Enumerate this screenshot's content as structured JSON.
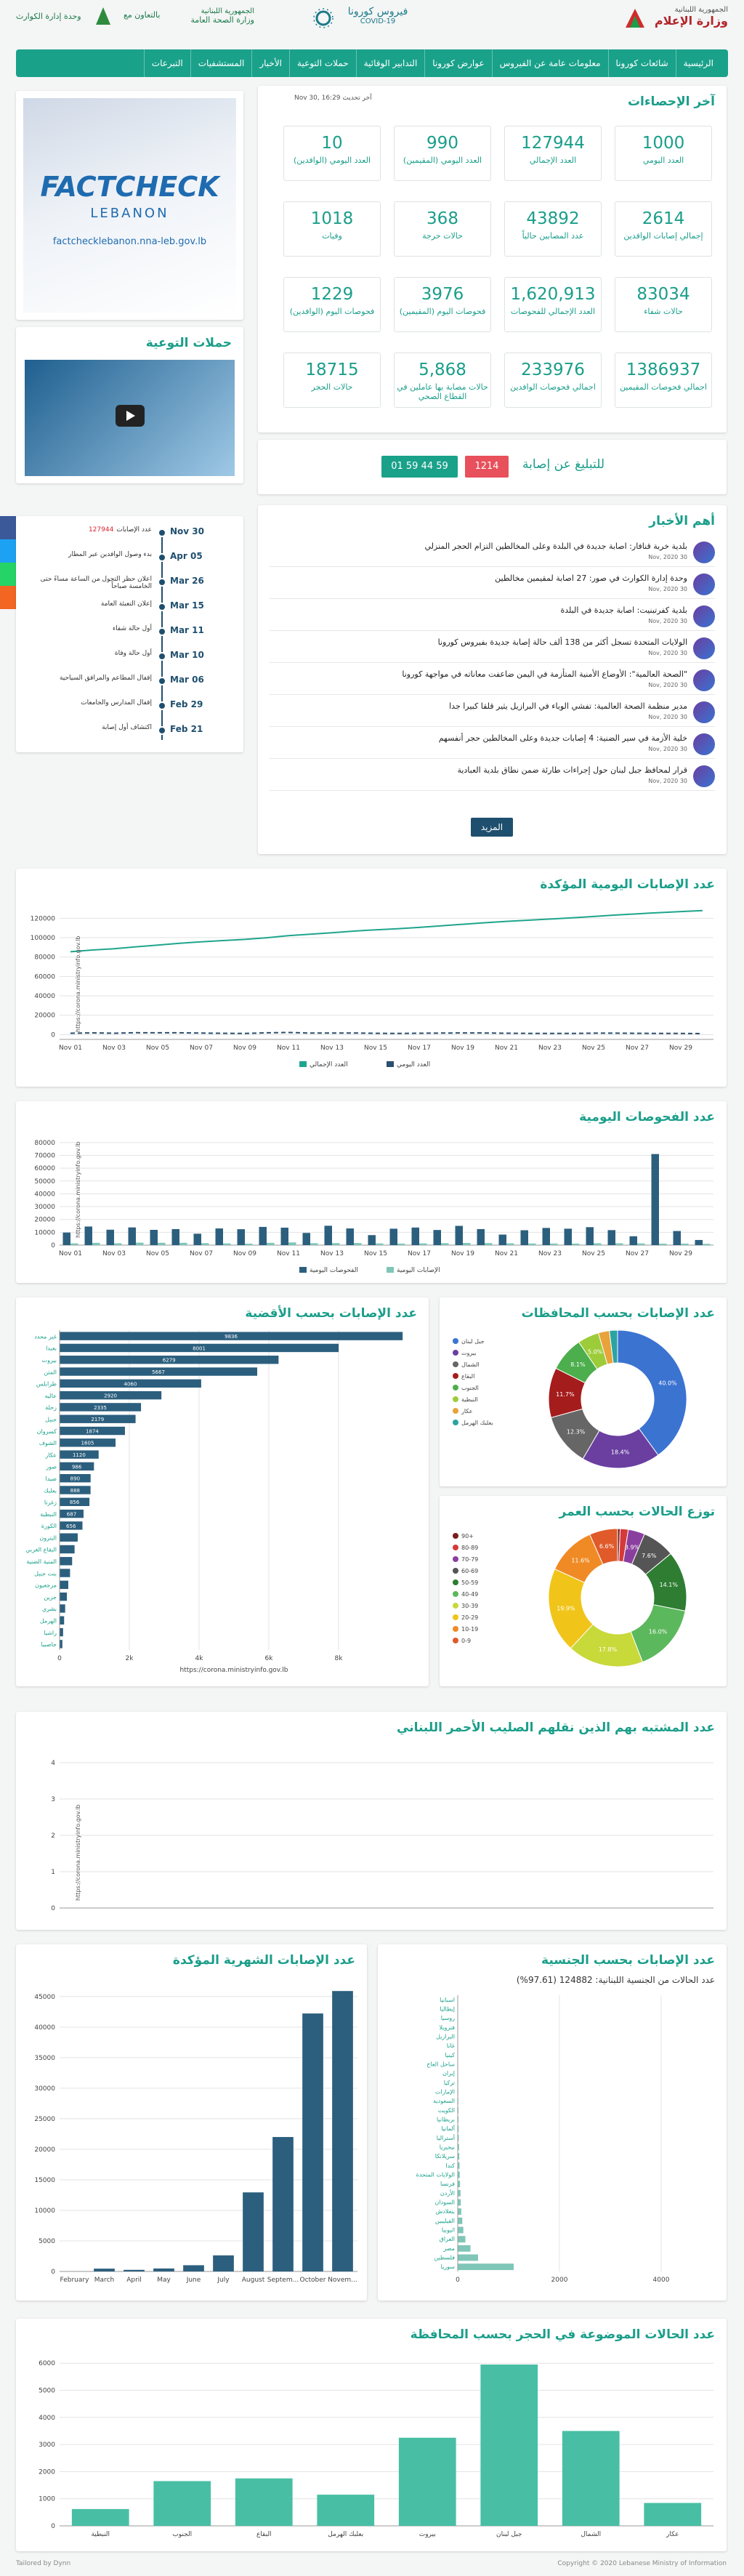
{
  "header": {
    "ministry": "وزارة الإعلام",
    "republic": "الجمهورية اللبنانية",
    "covid_ar": "فيروس كورونا",
    "covid_en": "COVID-19",
    "health_republic": "الجمهورية اللبنانية",
    "health": "وزارة الصحة العامة",
    "cooperation": "بالتعاون مع",
    "drm": "وحدة إدارة الكوارث"
  },
  "nav": [
    "الرئيسية",
    "شائعات كورونا",
    "معلومات عامة عن الفيروس",
    "عوارض كورونا",
    "التدابير الوقائية",
    "حملات التوعية",
    "الأخبار",
    "المستشفيات",
    "التبرعات"
  ],
  "stats": {
    "title": "آخر الإحصاءات",
    "updated": "آخر تحديث Nov 30, 16:29",
    "cards": [
      {
        "value": "1000",
        "label": "العدد اليومي"
      },
      {
        "value": "127944",
        "label": "العدد الإجمالي"
      },
      {
        "value": "990",
        "label": "العدد اليومي (المقيمين)"
      },
      {
        "value": "10",
        "label": "العدد اليومي (الوافدين)"
      },
      {
        "value": "2614",
        "label": "إجمالي إصابات الوافدين"
      },
      {
        "value": "43892",
        "label": "عدد المصابين حالياً"
      },
      {
        "value": "368",
        "label": "حالات حرجة"
      },
      {
        "value": "1018",
        "label": "وفيات"
      },
      {
        "value": "83034",
        "label": "حالات شفاء"
      },
      {
        "value": "1,620,913",
        "label": "العدد الإجمالي للفحوصات"
      },
      {
        "value": "3976",
        "label": "فحوصات اليوم (المقيمين)"
      },
      {
        "value": "1229",
        "label": "فحوصات اليوم (الوافدين)"
      },
      {
        "value": "1386937",
        "label": "اجمالي فحوصات المقيمين"
      },
      {
        "value": "233976",
        "label": "اجمالي فحوصات الوافدين"
      },
      {
        "value": "5,868",
        "label": "حالات مصابة بها عاملين في القطاع الصحي"
      },
      {
        "value": "18715",
        "label": "حالات الحجر"
      }
    ]
  },
  "factcheck": {
    "brand": "FACTCHECK",
    "country": "LEBANON",
    "url": "factchecklebanon.nna-leb.gov.lb"
  },
  "campaigns": {
    "title": "حملات التوعية"
  },
  "report": {
    "label": "للتبليغ عن إصابة",
    "hotline": "1214",
    "phone": "01 59 44 59"
  },
  "timeline": [
    {
      "date": "Nov 30",
      "text": "عدد الإصابات",
      "count": "127944"
    },
    {
      "date": "Apr 05",
      "text": "بدء وصول الوافدين عبر المطار"
    },
    {
      "date": "Mar 26",
      "text": "اعلان حظر التجول من الساعة مساءً حتى الخامسة صباحاً"
    },
    {
      "date": "Mar 15",
      "text": "إعلان التعبئة العامة"
    },
    {
      "date": "Mar 11",
      "text": "أول حالة شفاء"
    },
    {
      "date": "Mar 10",
      "text": "أول حالة وفاة"
    },
    {
      "date": "Mar 06",
      "text": "إقفال المطاعم والمرافق السياحية"
    },
    {
      "date": "Feb 29",
      "text": "إقفال المدارس والجامعات"
    },
    {
      "date": "Feb 21",
      "text": "اكتشاف أول إصابة"
    }
  ],
  "news": {
    "title": "أهم الأخبار",
    "more": "المزيد",
    "items": [
      {
        "title": "بلدية خربة قنافار: اصابة جديدة في البلدة وعلى المخالطين التزام الحجر المنزلي",
        "date": "30 Nov, 2020"
      },
      {
        "title": "وحدة إدارة الكوارث في صور: 27 اصابة لمقيمين مخالطين",
        "date": "30 Nov, 2020"
      },
      {
        "title": "بلدية كفرتبنيت: اصابة جديدة في البلدة",
        "date": "30 Nov, 2020"
      },
      {
        "title": "الولايات المتحدة تسجل أكثر من 138 ألف حالة إصابة جديدة بفيروس كورونا",
        "date": "30 Nov, 2020"
      },
      {
        "title": "\"الصحة العالمية\": الأوضاع الأمنية المتأزمة في اليمن ضاعفت معاناته في مواجهة كورونا",
        "date": "30 Nov, 2020"
      },
      {
        "title": "مدير منظمة الصحة العالمية: تفشي الوباء في البرازيل يثير قلقا كبيرا جدا",
        "date": "30 Nov, 2020"
      },
      {
        "title": "خلية الأزمة في سير الضنية: 4 إصابات جديدة وعلى المخالطين حجر أنفسهم",
        "date": "30 Nov, 2020"
      },
      {
        "title": "قرار لمحافظ جبل لبنان حول إجراءات طارئة ضمن نطاق بلدية العبادية",
        "date": "30 Nov, 2020"
      }
    ]
  },
  "source": "https://corona.ministryinfo.gov.lb",
  "charts": {
    "daily": {
      "type": "line",
      "title": "عدد الإصابات اليومية المؤكدة",
      "categories": [
        "Nov 01",
        null,
        "Nov 03",
        null,
        "Nov 05",
        null,
        "Nov 07",
        null,
        "Nov 09",
        null,
        "Nov 11",
        null,
        "Nov 13",
        null,
        "Nov 15",
        null,
        "Nov 17",
        null,
        "Nov 19",
        null,
        "Nov 21",
        null,
        "Nov 23",
        null,
        "Nov 25",
        null,
        "Nov 27",
        null,
        "Nov 29",
        null
      ],
      "series": [
        {
          "name": "العدد الإجمالي",
          "color": "#1fa58c",
          "dash": false,
          "values": [
            85456,
            87215,
            88622,
            90544,
            92384,
            94184,
            95698,
            97032,
            98165,
            99961,
            102059,
            103570,
            105122,
            106738,
            108065,
            109244,
            110610,
            112127,
            113814,
            115397,
            116777,
            118027,
            119232,
            120412,
            121861,
            123288,
            124613,
            125768,
            126944,
            127944
          ]
        },
        {
          "name": "العدد اليومي",
          "color": "#2c4f6e",
          "dash": true,
          "values": [
            1346,
            1759,
            1407,
            1922,
            1840,
            1800,
            1514,
            1334,
            1133,
            1796,
            2098,
            1511,
            1552,
            1616,
            1327,
            1179,
            1366,
            1517,
            1687,
            1583,
            1380,
            1250,
            1205,
            1180,
            1449,
            1427,
            1325,
            1155,
            1176,
            1000
          ]
        }
      ],
      "ylim": [
        -5000,
        130000
      ],
      "yticks": [
        0,
        20000,
        40000,
        60000,
        80000,
        100000,
        120000
      ],
      "grid": true
    },
    "tests": {
      "type": "bar",
      "title": "عدد الفحوصات اليومية",
      "categories": [
        "Nov 01",
        null,
        "Nov 03",
        null,
        "Nov 05",
        null,
        "Nov 07",
        null,
        "Nov 09",
        null,
        "Nov 11",
        null,
        "Nov 13",
        null,
        "Nov 15",
        null,
        "Nov 17",
        null,
        "Nov 19",
        null,
        "Nov 21",
        null,
        "Nov 23",
        null,
        "Nov 25",
        null,
        "Nov 27",
        null,
        "Nov 29",
        null
      ],
      "series": [
        {
          "name": "الفحوصات اليومية",
          "color": "#2c5f7e",
          "values": [
            9800,
            14500,
            12000,
            13800,
            11900,
            12500,
            8900,
            13000,
            12400,
            14200,
            13600,
            9500,
            15100,
            13000,
            7800,
            12800,
            13700,
            11800,
            15000,
            12500,
            8200,
            11600,
            13400,
            12800,
            14000,
            11700,
            6900,
            71000,
            11000,
            4000
          ]
        },
        {
          "name": "الإصابات اليومية",
          "color": "#7fc6b8",
          "values": [
            1346,
            1759,
            1407,
            1922,
            1840,
            1800,
            1514,
            1334,
            1133,
            1796,
            2098,
            1511,
            1552,
            1616,
            1327,
            1179,
            1366,
            1517,
            1687,
            1583,
            1380,
            1250,
            1205,
            1180,
            1449,
            1427,
            1325,
            1155,
            1176,
            1000
          ]
        }
      ],
      "ylim": [
        0,
        85000
      ],
      "yticks": [
        0,
        10000,
        20000,
        30000,
        40000,
        50000,
        60000,
        70000,
        80000
      ],
      "grid": true
    },
    "district": {
      "type": "hbar",
      "title": "عدد الإصابات بحسب الأقضية",
      "color": "#2c5f7e",
      "categories": [
        "غير محدد",
        "بعبدا",
        "بيروت",
        "المتن",
        "طرابلس",
        "عاليه",
        "زحلة",
        "جبيل",
        "كسروان",
        "الشوف",
        "عكار",
        "صور",
        "صيدا",
        "بعلبك",
        "زغرتا",
        "النبطية",
        "الكورة",
        "البترون",
        "البقاع الغربي",
        "المنية الضنية",
        "بنت جبيل",
        "مرجعيون",
        "جزين",
        "بشري",
        "الهرمل",
        "راشيا",
        "حاصبيا"
      ],
      "values": [
        9836,
        8001,
        6279,
        5667,
        4060,
        2920,
        2335,
        2179,
        1874,
        1605,
        1120,
        986,
        890,
        888,
        856,
        687,
        656,
        520,
        430,
        360,
        300,
        250,
        210,
        160,
        130,
        100,
        80
      ],
      "xlim": [
        0,
        10000
      ],
      "xticks": [
        0,
        {
          "value": 2000,
          "label": "2k"
        },
        {
          "value": 4000,
          "label": "4k"
        },
        {
          "value": 6000,
          "label": "6k"
        },
        {
          "value": 8000,
          "label": "8k"
        }
      ],
      "grid": true
    },
    "province": {
      "type": "donut",
      "title": "عدد الإصابات بحسب المحافظات",
      "categories": [
        "جبل لبنان",
        "بيروت",
        "الشمال",
        "البقاع",
        "الجنوب",
        "النبطية",
        "عكار",
        "بعلبك الهرمل"
      ],
      "values": [
        40.0,
        18.4,
        12.3,
        11.7,
        8.1,
        5.0,
        2.6,
        1.9
      ],
      "value_labels": [
        "40.0%",
        "18.4%",
        "12.3%",
        "11.7%",
        "8.1%",
        "5.0%",
        "2.6%",
        "1.9%"
      ],
      "colors": [
        "#3b73d1",
        "#6a3fa0",
        "#666666",
        "#a51c1c",
        "#4cae4c",
        "#9ccc3a",
        "#e8a33b",
        "#2aa3a3"
      ]
    },
    "age": {
      "type": "donut",
      "title": "توزع الحالات بحسب العمر",
      "categories": [
        "90+",
        "80-89",
        "70-79",
        "60-69",
        "50-59",
        "40-49",
        "30-39",
        "20-29",
        "10-19",
        "0-9"
      ],
      "values": [
        0.6,
        1.9,
        3.9,
        7.6,
        14.1,
        16.0,
        17.8,
        19.9,
        11.6,
        6.6
      ],
      "value_labels": [
        "0.6%",
        "1.9%",
        "3.9%",
        "7.6%",
        "14.1%",
        "16.0%",
        "17.8%",
        "19.9%",
        "11.6%",
        "6.6%"
      ],
      "colors": [
        "#7b1c1c",
        "#d43a3a",
        "#8a3f9f",
        "#555555",
        "#2e7d32",
        "#5cb85c",
        "#c8d93a",
        "#f0c419",
        "#f08a24",
        "#e05a2a"
      ]
    },
    "redcross": {
      "type": "line",
      "title": "عدد المشتبه بهم الذين نقلهم الصليب الأحمر اللبناني",
      "categories": [],
      "series": [],
      "ylim": [
        0,
        4.3
      ],
      "yticks": [
        0,
        1,
        2,
        3,
        4
      ],
      "grid": true
    },
    "monthly": {
      "type": "bar",
      "title": "عدد الإصابات الشهرية المؤكدة",
      "categories": [
        "February",
        "March",
        "April",
        "May",
        "June",
        "July",
        "August",
        "Septem...",
        "October",
        "Novem..."
      ],
      "series": [
        {
          "name": "الإصابات",
          "color": "#2c5f7e",
          "values": [
            4,
            459,
            262,
            485,
            1018,
            2631,
            12942,
            22007,
            42230,
            45906
          ]
        }
      ],
      "ylim": [
        0,
        47000
      ],
      "yticks": [
        0,
        5000,
        10000,
        15000,
        20000,
        25000,
        30000,
        35000,
        40000,
        45000
      ],
      "grid": true
    },
    "nationality": {
      "type": "hbar",
      "title": "عدد الإصابات بحسب الجنسية",
      "subtitle": "عدد الحالات من الجنسية اللبنانية: 124882 (97.61%)",
      "color": "#7fc6b8",
      "categories": [
        "اسبانيا",
        "إيطاليا",
        "روسيا",
        "فنزويلا",
        "البرازيل",
        "غانا",
        "كينيا",
        "ساحل العاج",
        "إيران",
        "تركيا",
        "الإمارات",
        "السعودية",
        "الكويت",
        "بريطانيا",
        "ألمانيا",
        "أستراليا",
        "نيجيريا",
        "سريلانكا",
        "كندا",
        "الولايات المتحدة",
        "فرنسا",
        "الأردن",
        "السودان",
        "بنغلادش",
        "الفيليبين",
        "اثيوبيا",
        "العراق",
        "مصر",
        "فلسطين",
        "سوريا"
      ],
      "values": [
        3,
        3,
        4,
        4,
        5,
        5,
        6,
        7,
        8,
        9,
        10,
        12,
        14,
        15,
        18,
        20,
        25,
        30,
        35,
        40,
        45,
        55,
        60,
        70,
        90,
        110,
        150,
        250,
        400,
        1100
      ],
      "xlim": [
        0,
        5000
      ],
      "xticks": [
        0,
        2000,
        4000
      ],
      "grid": true
    },
    "quarantine": {
      "type": "bar",
      "title": "عدد الحالات الموضوعة في الحجر بحسب المحافظة",
      "categories": [
        "النبطية",
        "الجنوب",
        "البقاع",
        "بعلبك الهرمل",
        "بيروت",
        "جبل لبنان",
        "الشمال",
        "عكار"
      ],
      "series": [
        {
          "name": "الحجر",
          "color": "#48bfa5",
          "values": [
            620,
            1650,
            1750,
            1150,
            3250,
            5950,
            3500,
            845
          ]
        }
      ],
      "ylim": [
        0,
        6300
      ],
      "yticks": [
        0,
        1000,
        2000,
        3000,
        4000,
        5000,
        6000
      ],
      "grid": true
    }
  },
  "footer": {
    "credit": "Tailored by Dynn",
    "copyright": "Copyright © 2020 Lebanese Ministry of Information"
  }
}
